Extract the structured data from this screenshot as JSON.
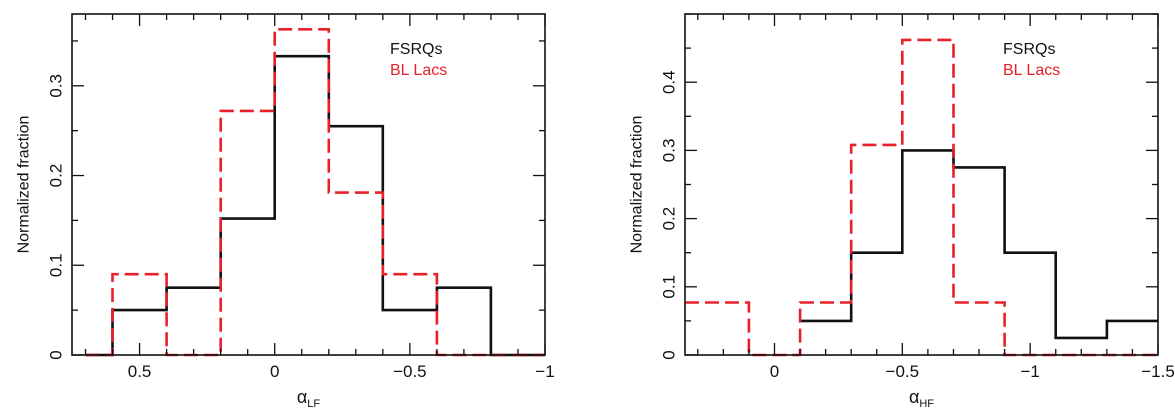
{
  "colors": {
    "fsrq": "#111111",
    "bllac": "#e8202a",
    "axis": "#111111"
  },
  "chart_data": [
    {
      "type": "histogram",
      "xlabel_symbol": "α",
      "xlabel_sub": "LF",
      "ylabel": "Normalized fraction",
      "xlim": [
        0.75,
        -1.0
      ],
      "ylim": [
        0,
        0.38
      ],
      "xticks": [
        0.5,
        0,
        -0.5,
        -1
      ],
      "xtick_labels": [
        "0.5",
        "0",
        "−0.5",
        "−1"
      ],
      "yticks": [
        0,
        0.1,
        0.2,
        0.3
      ],
      "ytick_labels": [
        "0",
        "0.1",
        "0.2",
        "0.3"
      ],
      "grid": false,
      "legend_position": "top-right",
      "series": [
        {
          "name": "FSRQs",
          "style": "solid",
          "edges": [
            0.7,
            0.6,
            0.4,
            0.2,
            0.0,
            -0.2,
            -0.4,
            -0.6,
            -0.8,
            -1.0
          ],
          "values": [
            0.0,
            0.05,
            0.075,
            0.152,
            0.333,
            0.255,
            0.05,
            0.075,
            0.0
          ]
        },
        {
          "name": "BL Lacs",
          "style": "dashed",
          "edges": [
            0.7,
            0.6,
            0.4,
            0.2,
            0.0,
            -0.2,
            -0.4,
            -0.6,
            -0.8,
            -1.0
          ],
          "values": [
            0.0,
            0.09,
            0.0,
            0.272,
            0.363,
            0.181,
            0.09,
            0.0,
            0.0
          ]
        }
      ]
    },
    {
      "type": "histogram",
      "xlabel_symbol": "α",
      "xlabel_sub": "HF",
      "ylabel": "Normalized fraction",
      "xlim": [
        0.35,
        -1.5
      ],
      "ylim": [
        0,
        0.5
      ],
      "xticks": [
        0,
        -0.5,
        -1,
        -1.5
      ],
      "xtick_labels": [
        "0",
        "−0.5",
        "−1",
        "−1.5"
      ],
      "yticks": [
        0,
        0.1,
        0.2,
        0.3,
        0.4
      ],
      "ytick_labels": [
        "0",
        "0.1",
        "0.2",
        "0.3",
        "0.4"
      ],
      "grid": false,
      "legend_position": "top-right",
      "series": [
        {
          "name": "FSRQs",
          "style": "solid",
          "edges": [
            -0.1,
            -0.3,
            -0.5,
            -0.7,
            -0.9,
            -1.1,
            -1.3,
            -1.5
          ],
          "values": [
            0.05,
            0.15,
            0.3,
            0.275,
            0.15,
            0.025,
            0.05
          ]
        },
        {
          "name": "BL Lacs",
          "style": "dashed",
          "edges": [
            0.35,
            0.1,
            -0.1,
            -0.3,
            -0.5,
            -0.7,
            -0.9,
            -1.1,
            -1.3,
            -1.5
          ],
          "values": [
            0.077,
            0.0,
            0.077,
            0.308,
            0.462,
            0.077,
            0.0,
            0.0,
            0.0
          ]
        }
      ]
    }
  ]
}
